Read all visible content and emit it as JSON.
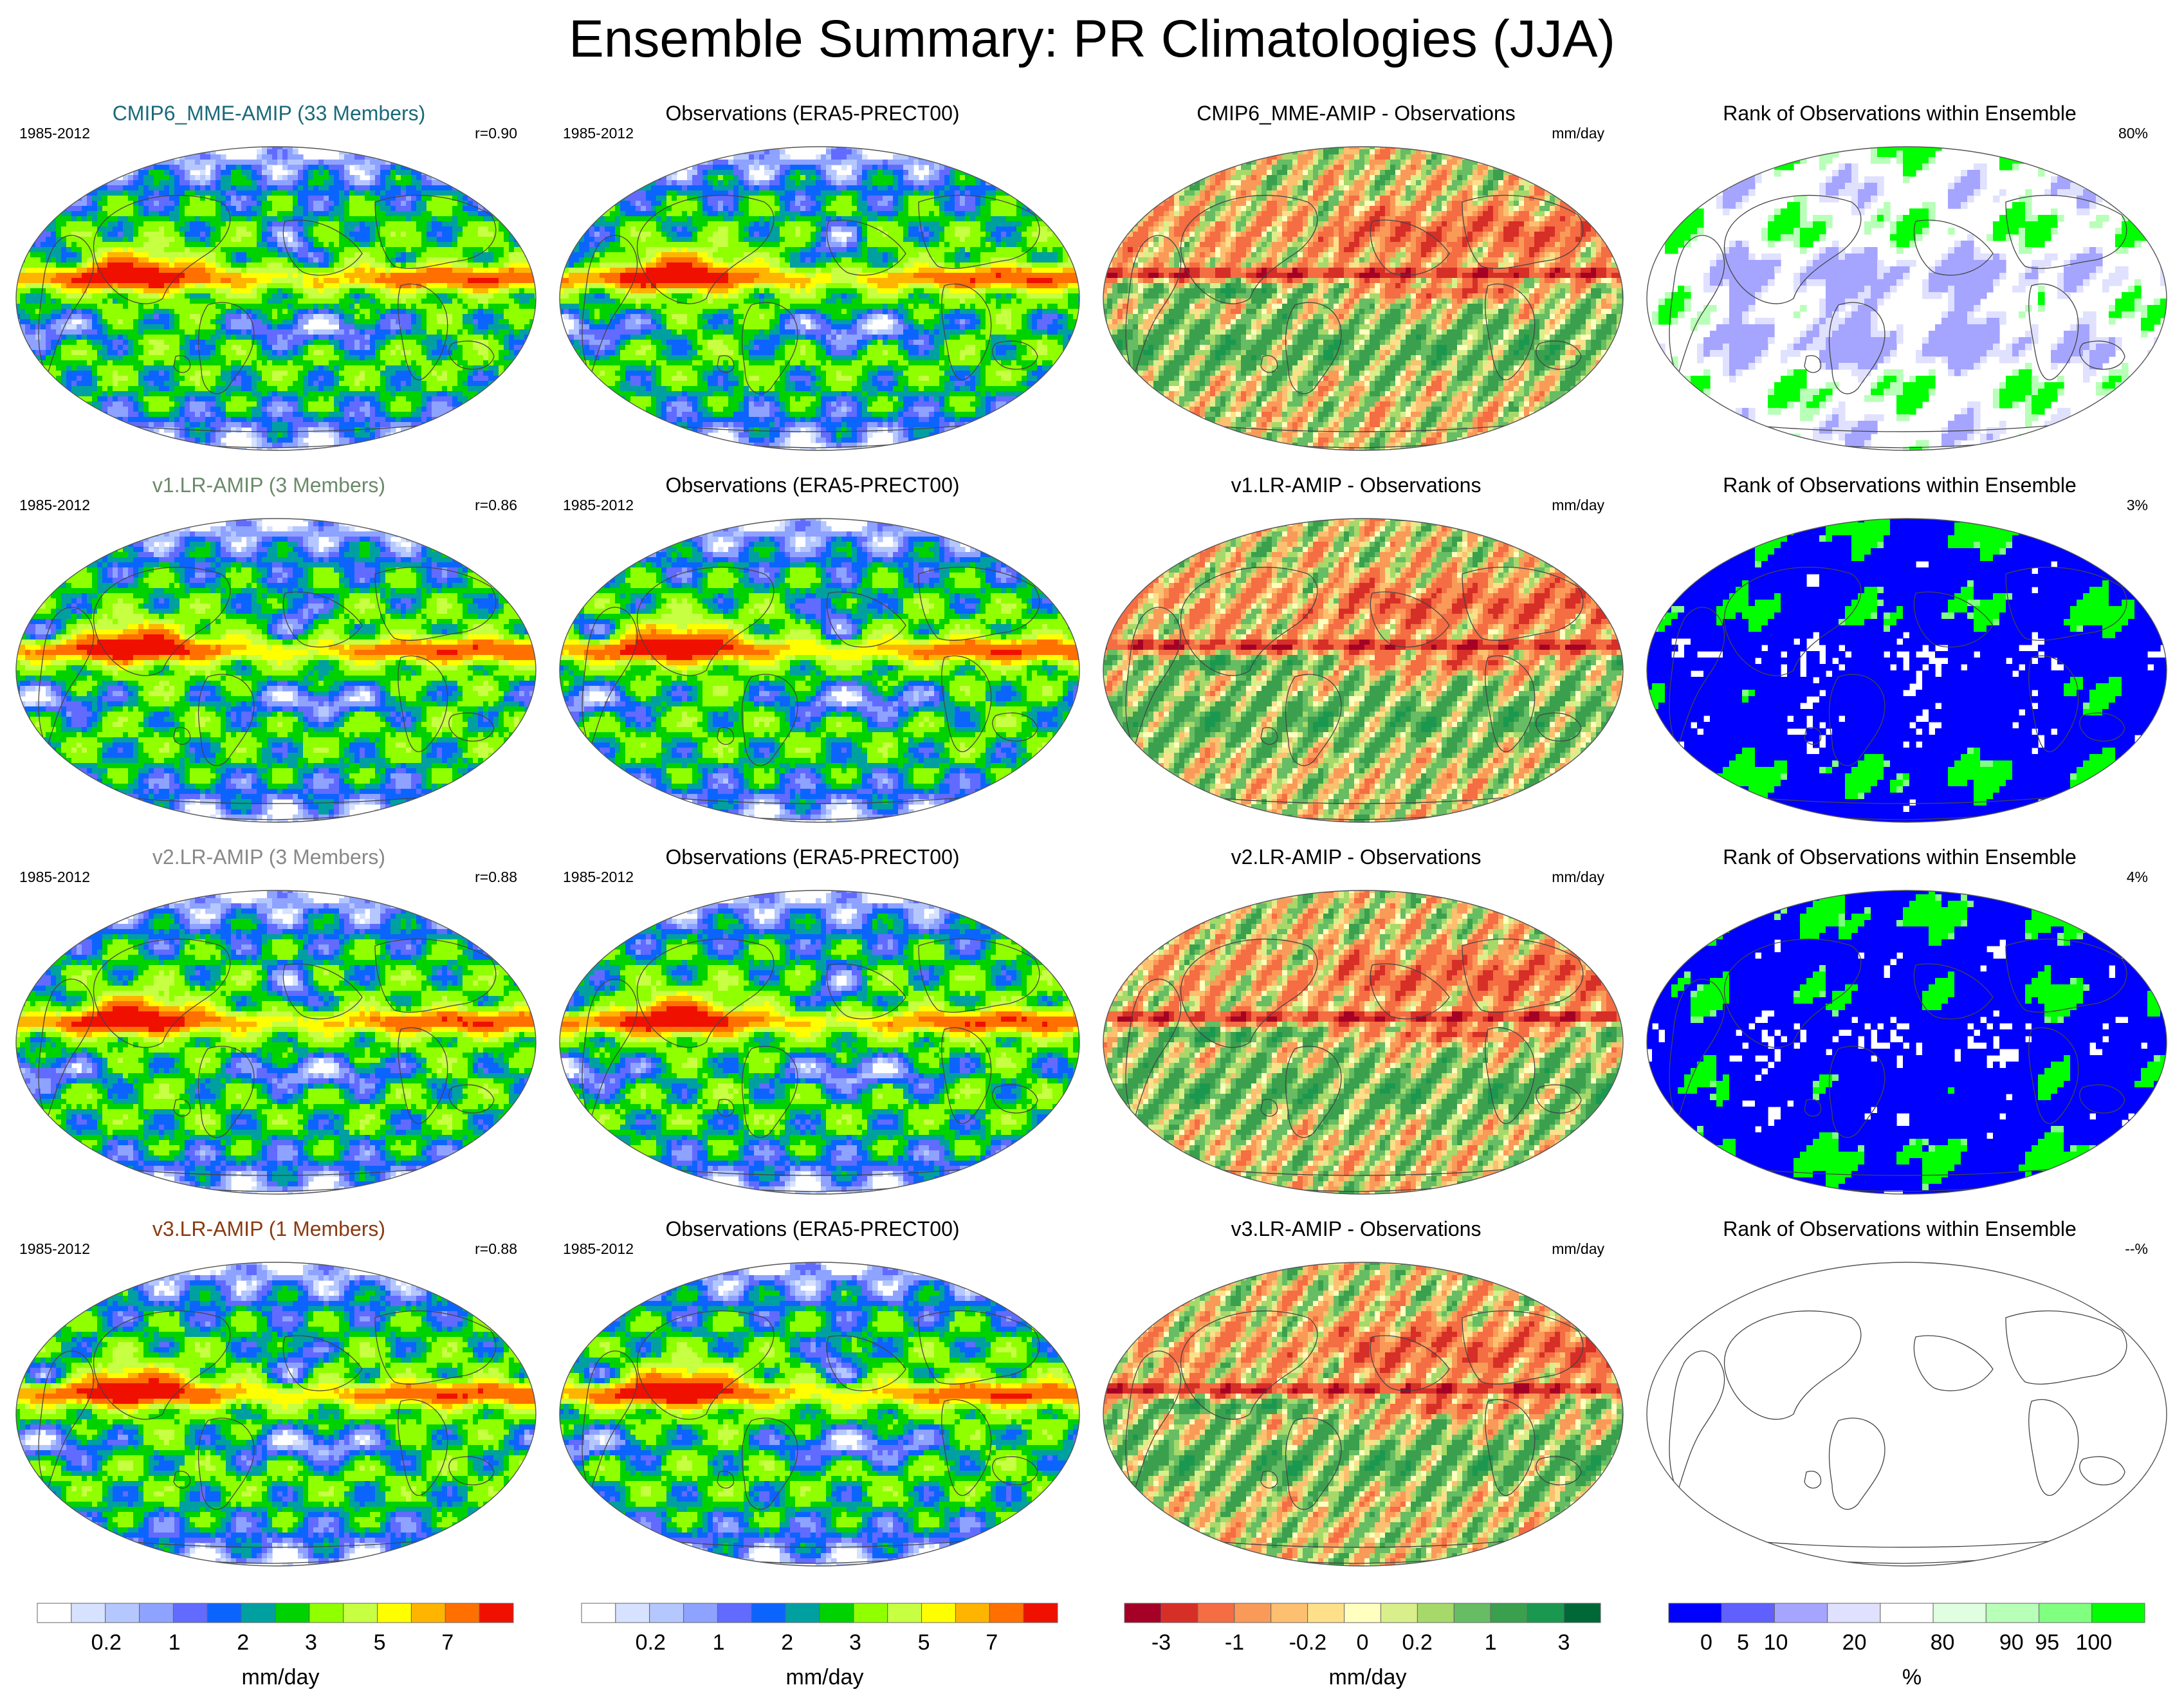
{
  "title": "Ensemble Summary: PR Climatologies (JJA)",
  "colors": {
    "precip": [
      "#ffffff",
      "#d6e2ff",
      "#b5c7ff",
      "#8ea2ff",
      "#626bff",
      "#0c64ff",
      "#00a0a0",
      "#00d200",
      "#90ff00",
      "#c7ff42",
      "#ffff00",
      "#ffb400",
      "#ff7000",
      "#f01000"
    ],
    "diff": [
      "#a50026",
      "#d62f27",
      "#f46d43",
      "#fa9a58",
      "#fdbf70",
      "#fee08b",
      "#ffffbf",
      "#d9ef8b",
      "#a6d96a",
      "#66bd63",
      "#3aa04e",
      "#1a9850",
      "#006837"
    ],
    "rank": [
      "#0000ff",
      "#6060ff",
      "#a5a5ff",
      "#e0e0ff",
      "#ffffff",
      "#e0ffe0",
      "#b8ffb8",
      "#80ff80",
      "#00ff00"
    ],
    "row_titles": [
      "#1a6a7a",
      "#6a8a6a",
      "#888888",
      "#8a3a10"
    ]
  },
  "rows": [
    {
      "model_title": "CMIP6_MME-AMIP (33 Members)",
      "model_period": "1985-2012",
      "model_r": "r=0.90",
      "obs_title": "Observations (ERA5-PRECT00)",
      "obs_period": "1985-2012",
      "diff_title": "CMIP6_MME-AMIP - Observations",
      "diff_units": "mm/day",
      "rank_title": "Rank of Observations within Ensemble",
      "rank_pct": "80%",
      "rank_fraction": 0.8
    },
    {
      "model_title": "v1.LR-AMIP (3 Members)",
      "model_period": "1985-2012",
      "model_r": "r=0.86",
      "obs_title": "Observations (ERA5-PRECT00)",
      "obs_period": "1985-2012",
      "diff_title": "v1.LR-AMIP - Observations",
      "diff_units": "mm/day",
      "rank_title": "Rank of Observations within Ensemble",
      "rank_pct": "3%",
      "rank_fraction": 0.03
    },
    {
      "model_title": "v2.LR-AMIP (3 Members)",
      "model_period": "1985-2012",
      "model_r": "r=0.88",
      "obs_title": "Observations (ERA5-PRECT00)",
      "obs_period": "1985-2012",
      "diff_title": "v2.LR-AMIP - Observations",
      "diff_units": "mm/day",
      "rank_title": "Rank of Observations within Ensemble",
      "rank_pct": "4%",
      "rank_fraction": 0.04
    },
    {
      "model_title": "v3.LR-AMIP (1 Members)",
      "model_period": "1985-2012",
      "model_r": "r=0.88",
      "obs_title": "Observations (ERA5-PRECT00)",
      "obs_period": "1985-2012",
      "diff_title": "v3.LR-AMIP - Observations",
      "diff_units": "mm/day",
      "rank_title": "Rank of Observations within Ensemble",
      "rank_pct": "--%",
      "rank_fraction": null
    }
  ],
  "colorbars": [
    {
      "label": "mm/day",
      "ticks": [
        "0.2",
        "1",
        "2",
        "3",
        "5",
        "7"
      ],
      "palette": "precip"
    },
    {
      "label": "mm/day",
      "ticks": [
        "0.2",
        "1",
        "2",
        "3",
        "5",
        "7"
      ],
      "palette": "precip"
    },
    {
      "label": "mm/day",
      "ticks": [
        "-3",
        "-1",
        "-0.2",
        "0",
        "0.2",
        "1",
        "3"
      ],
      "palette": "diff"
    },
    {
      "label": "%",
      "ticks": [
        "0",
        "5",
        "10",
        "20",
        "80",
        "90",
        "95",
        "100"
      ],
      "palette": "rank"
    }
  ],
  "chart_data": {
    "type": "heatmap",
    "title": "Ensemble Summary: PR Climatologies (JJA)",
    "season": "JJA",
    "period": "1985-2012",
    "observations": "ERA5-PRECT00",
    "models": [
      "CMIP6_MME-AMIP (33 Members)",
      "v1.LR-AMIP (3 Members)",
      "v2.LR-AMIP (3 Members)",
      "v3.LR-AMIP (1 Members)"
    ],
    "pattern_correlation": [
      0.9,
      0.86,
      0.88,
      0.88
    ],
    "observation_rank_percent": [
      80,
      3,
      4,
      null
    ],
    "precip_levels_mm_per_day": [
      0.2,
      1,
      2,
      3,
      5,
      7
    ],
    "diff_levels_mm_per_day": [
      -3,
      -1,
      -0.2,
      0,
      0.2,
      1,
      3
    ],
    "rank_levels_percent": [
      0,
      5,
      10,
      20,
      80,
      90,
      95,
      100
    ]
  }
}
